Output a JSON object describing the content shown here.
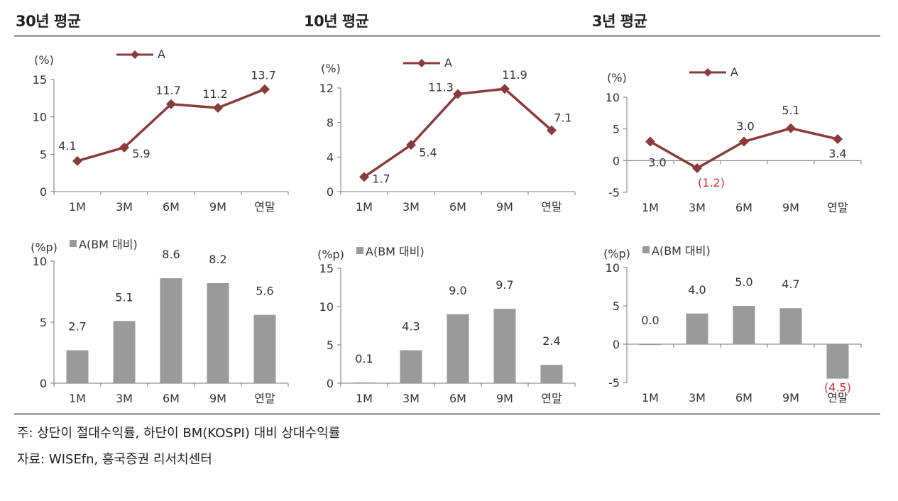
{
  "headers": [
    "30년 평균",
    "10년 평균",
    "3년 평균"
  ],
  "notes": {
    "note": "주: 상단이 절대수익률, 하단이 BM(KOSPI) 대비 상대수익률",
    "source": "자료: WISEfn, 흥국증권 리서치센터"
  },
  "colors": {
    "line": "#8b3a3a",
    "bar": "#9a9a9a",
    "negative": "#cc3333",
    "axis": "#777777"
  },
  "chart_data": [
    {
      "type": "line",
      "panel": "30년 평균",
      "unit": "(%)",
      "categories": [
        "1M",
        "3M",
        "6M",
        "9M",
        "연말"
      ],
      "series": [
        {
          "name": "A",
          "values": [
            4.1,
            5.9,
            11.7,
            11.2,
            13.7
          ]
        }
      ],
      "labels": [
        "4.1",
        "5.9",
        "11.7",
        "11.2",
        "13.7"
      ],
      "ylim": [
        0,
        15
      ],
      "yticks": [
        0,
        5,
        10,
        15
      ],
      "grid": false,
      "legend": "top"
    },
    {
      "type": "line",
      "panel": "10년 평균",
      "unit": "(%)",
      "categories": [
        "1M",
        "3M",
        "6M",
        "9M",
        "연말"
      ],
      "series": [
        {
          "name": "A",
          "values": [
            1.7,
            5.4,
            11.3,
            11.9,
            7.1
          ]
        }
      ],
      "labels": [
        "1.7",
        "5.4",
        "11.3",
        "11.9",
        "7.1"
      ],
      "ylim": [
        0,
        12
      ],
      "yticks": [
        0,
        4,
        8,
        12
      ],
      "grid": false,
      "legend": "top"
    },
    {
      "type": "line",
      "panel": "3년 평균",
      "unit": "(%)",
      "categories": [
        "1M",
        "3M",
        "6M",
        "9M",
        "연말"
      ],
      "series": [
        {
          "name": "A",
          "values": [
            3.0,
            -1.2,
            3.0,
            5.1,
            3.4
          ]
        }
      ],
      "labels": [
        "3.0",
        "(1.2)",
        "3.0",
        "5.1",
        "3.4"
      ],
      "ylim": [
        -5,
        10
      ],
      "yticks": [
        -5,
        0,
        5,
        10
      ],
      "grid": false,
      "legend": "top"
    },
    {
      "type": "bar",
      "panel": "30년 평균",
      "unit": "(%p)",
      "categories": [
        "1M",
        "3M",
        "6M",
        "9M",
        "연말"
      ],
      "series": [
        {
          "name": "A(BM 대비)",
          "values": [
            2.7,
            5.1,
            8.6,
            8.2,
            5.6
          ]
        }
      ],
      "labels": [
        "2.7",
        "5.1",
        "8.6",
        "8.2",
        "5.6"
      ],
      "ylim": [
        0,
        10
      ],
      "yticks": [
        0,
        5,
        10
      ],
      "grid": false,
      "legend": "top"
    },
    {
      "type": "bar",
      "panel": "10년 평균",
      "unit": "(%p)",
      "categories": [
        "1M",
        "3M",
        "6M",
        "9M",
        "연말"
      ],
      "series": [
        {
          "name": "A(BM 대비)",
          "values": [
            0.1,
            4.3,
            9.0,
            9.7,
            2.4
          ]
        }
      ],
      "labels": [
        "0.1",
        "4.3",
        "9.0",
        "9.7",
        "2.4"
      ],
      "ylim": [
        0,
        15
      ],
      "yticks": [
        0,
        5,
        10,
        15
      ],
      "grid": false,
      "legend": "top"
    },
    {
      "type": "bar",
      "panel": "3년 평균",
      "unit": "(%p)",
      "categories": [
        "1M",
        "3M",
        "6M",
        "9M",
        "연말"
      ],
      "series": [
        {
          "name": "A(BM 대비)",
          "values": [
            0.0,
            4.0,
            5.0,
            4.7,
            -4.5
          ]
        }
      ],
      "labels": [
        "0.0",
        "4.0",
        "5.0",
        "4.7",
        "(4.5)"
      ],
      "ylim": [
        -5,
        10
      ],
      "yticks": [
        -5,
        0,
        5,
        10
      ],
      "grid": false,
      "legend": "top"
    }
  ]
}
